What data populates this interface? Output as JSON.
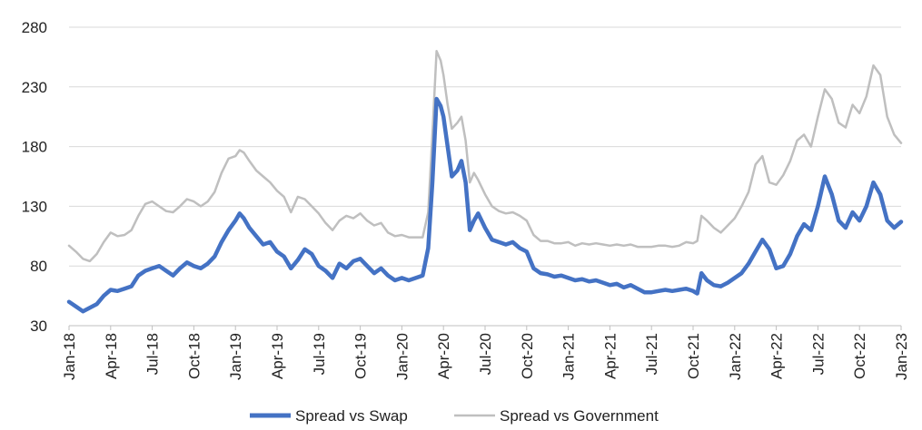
{
  "chart_data": {
    "type": "line",
    "title": "",
    "xlabel": "",
    "ylabel": "",
    "ylim": [
      30,
      280
    ],
    "yticks": [
      "30",
      "80",
      "130",
      "180",
      "230",
      "280"
    ],
    "xticks": [
      "Jan-18",
      "Apr-18",
      "Jul-18",
      "Oct-18",
      "Jan-19",
      "Apr-19",
      "Jul-19",
      "Oct-19",
      "Jan-20",
      "Apr-20",
      "Jul-20",
      "Oct-20",
      "Jan-21",
      "Apr-21",
      "Jul-21",
      "Oct-21",
      "Jan-22",
      "Apr-22",
      "Jul-22",
      "Oct-22",
      "Jan-23"
    ],
    "x_range_months": [
      0,
      60
    ],
    "grid": true,
    "legend_position": "bottom",
    "series": [
      {
        "name": "Spread vs Swap",
        "color": "#4472C4",
        "points": [
          [
            0,
            50
          ],
          [
            0.5,
            46
          ],
          [
            1,
            42
          ],
          [
            1.5,
            45
          ],
          [
            2,
            48
          ],
          [
            2.5,
            55
          ],
          [
            3,
            60
          ],
          [
            3.5,
            59
          ],
          [
            4,
            61
          ],
          [
            4.5,
            63
          ],
          [
            5,
            72
          ],
          [
            5.5,
            76
          ],
          [
            6,
            78
          ],
          [
            6.5,
            80
          ],
          [
            7,
            76
          ],
          [
            7.5,
            72
          ],
          [
            8,
            78
          ],
          [
            8.5,
            83
          ],
          [
            9,
            80
          ],
          [
            9.5,
            78
          ],
          [
            10,
            82
          ],
          [
            10.5,
            88
          ],
          [
            11,
            100
          ],
          [
            11.5,
            110
          ],
          [
            12,
            118
          ],
          [
            12.3,
            124
          ],
          [
            12.6,
            120
          ],
          [
            13,
            112
          ],
          [
            13.5,
            105
          ],
          [
            14,
            98
          ],
          [
            14.5,
            100
          ],
          [
            15,
            92
          ],
          [
            15.5,
            88
          ],
          [
            16,
            78
          ],
          [
            16.5,
            85
          ],
          [
            17,
            94
          ],
          [
            17.5,
            90
          ],
          [
            18,
            80
          ],
          [
            18.5,
            76
          ],
          [
            19,
            70
          ],
          [
            19.5,
            82
          ],
          [
            20,
            78
          ],
          [
            20.5,
            84
          ],
          [
            21,
            86
          ],
          [
            21.5,
            80
          ],
          [
            22,
            74
          ],
          [
            22.5,
            78
          ],
          [
            23,
            72
          ],
          [
            23.5,
            68
          ],
          [
            24,
            70
          ],
          [
            24.5,
            68
          ],
          [
            25,
            70
          ],
          [
            25.5,
            72
          ],
          [
            25.9,
            95
          ],
          [
            26.2,
            150
          ],
          [
            26.5,
            220
          ],
          [
            26.8,
            214
          ],
          [
            27,
            205
          ],
          [
            27.3,
            180
          ],
          [
            27.6,
            155
          ],
          [
            28,
            160
          ],
          [
            28.3,
            168
          ],
          [
            28.6,
            150
          ],
          [
            28.9,
            110
          ],
          [
            29.2,
            118
          ],
          [
            29.5,
            124
          ],
          [
            30,
            112
          ],
          [
            30.5,
            102
          ],
          [
            31,
            100
          ],
          [
            31.5,
            98
          ],
          [
            32,
            100
          ],
          [
            32.5,
            95
          ],
          [
            33,
            92
          ],
          [
            33.5,
            78
          ],
          [
            34,
            74
          ],
          [
            34.5,
            73
          ],
          [
            35,
            71
          ],
          [
            35.5,
            72
          ],
          [
            36,
            70
          ],
          [
            36.5,
            68
          ],
          [
            37,
            69
          ],
          [
            37.5,
            67
          ],
          [
            38,
            68
          ],
          [
            38.5,
            66
          ],
          [
            39,
            64
          ],
          [
            39.5,
            65
          ],
          [
            40,
            62
          ],
          [
            40.5,
            64
          ],
          [
            41,
            61
          ],
          [
            41.5,
            58
          ],
          [
            42,
            58
          ],
          [
            42.5,
            59
          ],
          [
            43,
            60
          ],
          [
            43.5,
            59
          ],
          [
            44,
            60
          ],
          [
            44.5,
            61
          ],
          [
            45,
            59
          ],
          [
            45.3,
            57
          ],
          [
            45.6,
            74
          ],
          [
            46,
            68
          ],
          [
            46.5,
            64
          ],
          [
            47,
            63
          ],
          [
            47.5,
            66
          ],
          [
            48,
            70
          ],
          [
            48.5,
            74
          ],
          [
            49,
            82
          ],
          [
            49.5,
            92
          ],
          [
            50,
            102
          ],
          [
            50.5,
            94
          ],
          [
            51,
            78
          ],
          [
            51.5,
            80
          ],
          [
            52,
            90
          ],
          [
            52.5,
            105
          ],
          [
            53,
            115
          ],
          [
            53.5,
            110
          ],
          [
            54,
            130
          ],
          [
            54.5,
            155
          ],
          [
            55,
            140
          ],
          [
            55.5,
            118
          ],
          [
            56,
            112
          ],
          [
            56.5,
            125
          ],
          [
            57,
            118
          ],
          [
            57.5,
            130
          ],
          [
            58,
            150
          ],
          [
            58.5,
            140
          ],
          [
            59,
            118
          ],
          [
            59.5,
            112
          ],
          [
            60,
            117
          ]
        ]
      },
      {
        "name": "Spread vs Government",
        "color": "#BFBFBF",
        "points": [
          [
            0,
            97
          ],
          [
            0.5,
            92
          ],
          [
            1,
            86
          ],
          [
            1.5,
            84
          ],
          [
            2,
            90
          ],
          [
            2.5,
            100
          ],
          [
            3,
            108
          ],
          [
            3.5,
            105
          ],
          [
            4,
            106
          ],
          [
            4.5,
            110
          ],
          [
            5,
            122
          ],
          [
            5.5,
            132
          ],
          [
            6,
            134
          ],
          [
            6.5,
            130
          ],
          [
            7,
            126
          ],
          [
            7.5,
            125
          ],
          [
            8,
            130
          ],
          [
            8.5,
            136
          ],
          [
            9,
            134
          ],
          [
            9.5,
            130
          ],
          [
            10,
            134
          ],
          [
            10.5,
            142
          ],
          [
            11,
            158
          ],
          [
            11.5,
            170
          ],
          [
            12,
            172
          ],
          [
            12.3,
            177
          ],
          [
            12.6,
            175
          ],
          [
            13,
            168
          ],
          [
            13.5,
            160
          ],
          [
            14,
            155
          ],
          [
            14.5,
            150
          ],
          [
            15,
            143
          ],
          [
            15.5,
            138
          ],
          [
            16,
            125
          ],
          [
            16.5,
            138
          ],
          [
            17,
            136
          ],
          [
            17.5,
            130
          ],
          [
            18,
            124
          ],
          [
            18.5,
            116
          ],
          [
            19,
            110
          ],
          [
            19.5,
            118
          ],
          [
            20,
            122
          ],
          [
            20.5,
            120
          ],
          [
            21,
            124
          ],
          [
            21.5,
            118
          ],
          [
            22,
            114
          ],
          [
            22.5,
            116
          ],
          [
            23,
            108
          ],
          [
            23.5,
            105
          ],
          [
            24,
            106
          ],
          [
            24.5,
            104
          ],
          [
            25,
            104
          ],
          [
            25.5,
            104
          ],
          [
            25.9,
            125
          ],
          [
            26.2,
            190
          ],
          [
            26.5,
            260
          ],
          [
            26.8,
            252
          ],
          [
            27,
            240
          ],
          [
            27.3,
            215
          ],
          [
            27.6,
            195
          ],
          [
            28,
            200
          ],
          [
            28.3,
            205
          ],
          [
            28.6,
            185
          ],
          [
            28.9,
            150
          ],
          [
            29.2,
            158
          ],
          [
            29.5,
            152
          ],
          [
            30,
            140
          ],
          [
            30.5,
            130
          ],
          [
            31,
            126
          ],
          [
            31.5,
            124
          ],
          [
            32,
            125
          ],
          [
            32.5,
            122
          ],
          [
            33,
            118
          ],
          [
            33.5,
            106
          ],
          [
            34,
            101
          ],
          [
            34.5,
            101
          ],
          [
            35,
            99
          ],
          [
            35.5,
            99
          ],
          [
            36,
            100
          ],
          [
            36.5,
            97
          ],
          [
            37,
            99
          ],
          [
            37.5,
            98
          ],
          [
            38,
            99
          ],
          [
            38.5,
            98
          ],
          [
            39,
            97
          ],
          [
            39.5,
            98
          ],
          [
            40,
            97
          ],
          [
            40.5,
            98
          ],
          [
            41,
            96
          ],
          [
            41.5,
            96
          ],
          [
            42,
            96
          ],
          [
            42.5,
            97
          ],
          [
            43,
            97
          ],
          [
            43.5,
            96
          ],
          [
            44,
            97
          ],
          [
            44.5,
            100
          ],
          [
            45,
            99
          ],
          [
            45.3,
            101
          ],
          [
            45.6,
            122
          ],
          [
            46,
            118
          ],
          [
            46.5,
            112
          ],
          [
            47,
            108
          ],
          [
            47.5,
            114
          ],
          [
            48,
            120
          ],
          [
            48.5,
            130
          ],
          [
            49,
            142
          ],
          [
            49.5,
            165
          ],
          [
            50,
            172
          ],
          [
            50.5,
            150
          ],
          [
            51,
            148
          ],
          [
            51.5,
            156
          ],
          [
            52,
            168
          ],
          [
            52.5,
            185
          ],
          [
            53,
            190
          ],
          [
            53.5,
            180
          ],
          [
            54,
            205
          ],
          [
            54.5,
            228
          ],
          [
            55,
            220
          ],
          [
            55.5,
            200
          ],
          [
            56,
            196
          ],
          [
            56.5,
            215
          ],
          [
            57,
            208
          ],
          [
            57.5,
            222
          ],
          [
            58,
            248
          ],
          [
            58.5,
            240
          ],
          [
            59,
            205
          ],
          [
            59.5,
            190
          ],
          [
            60,
            183
          ]
        ]
      }
    ]
  }
}
